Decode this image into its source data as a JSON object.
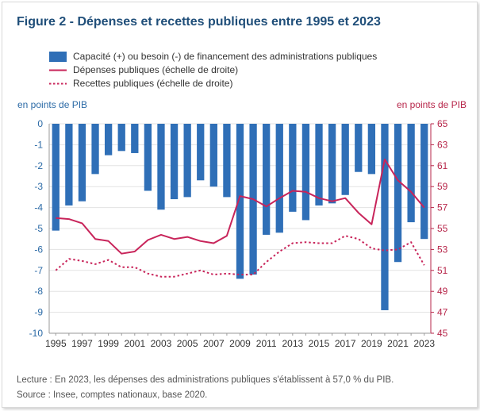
{
  "title": "Figure 2 - Dépenses et recettes publiques entre 1995 et 2023",
  "legend": {
    "bars": "Capacité (+) ou besoin (-) de financement des administrations publiques",
    "depenses": "Dépenses publiques (échelle de droite)",
    "recettes": "Recettes publiques (échelle de droite)"
  },
  "axis_left_title": "en points de PIB",
  "axis_right_title": "en points de PIB",
  "notes": {
    "lecture": "Lecture : En 2023, les dépenses des administrations publiques s'établissent à 57,0 % du PIB.",
    "source": "Source : Insee, comptes nationaux, base 2020."
  },
  "colors": {
    "bar": "#2f6fb7",
    "depenses": "#c8245a",
    "recettes": "#c8245a",
    "left_axis": "#2b6aa6",
    "right_axis": "#b7264a"
  },
  "chart_data": {
    "type": "bar",
    "years": [
      1995,
      1996,
      1997,
      1998,
      1999,
      2000,
      2001,
      2002,
      2003,
      2004,
      2005,
      2006,
      2007,
      2008,
      2009,
      2010,
      2011,
      2012,
      2013,
      2014,
      2015,
      2016,
      2017,
      2018,
      2019,
      2020,
      2021,
      2022,
      2023
    ],
    "x_tick_labels": [
      "1995",
      "1997",
      "1999",
      "2001",
      "2003",
      "2005",
      "2007",
      "2009",
      "2011",
      "2013",
      "2015",
      "2017",
      "2019",
      "2021",
      "2023"
    ],
    "y_left": {
      "range": [
        -10,
        0
      ],
      "ticks": [
        "0",
        "-1",
        "-2",
        "-3",
        "-4",
        "-5",
        "-6",
        "-7",
        "-8",
        "-9",
        "-10"
      ]
    },
    "y_right": {
      "range": [
        45,
        65
      ],
      "ticks": [
        "65",
        "63",
        "61",
        "59",
        "57",
        "55",
        "53",
        "51",
        "49",
        "47",
        "45"
      ]
    },
    "series": [
      {
        "name": "Capacité (+) ou besoin (-) de financement des administrations publiques",
        "axis": "left",
        "kind": "bar",
        "values": [
          -5.1,
          -3.9,
          -3.7,
          -2.4,
          -1.5,
          -1.3,
          -1.4,
          -3.2,
          -4.1,
          -3.6,
          -3.5,
          -2.7,
          -3.0,
          -3.5,
          -7.4,
          -7.2,
          -5.3,
          -5.2,
          -4.2,
          -4.6,
          -3.9,
          -3.8,
          -3.4,
          -2.3,
          -2.4,
          -8.9,
          -6.6,
          -4.7,
          -5.5
        ]
      },
      {
        "name": "Dépenses publiques (échelle de droite)",
        "axis": "right",
        "kind": "line",
        "values": [
          56.0,
          55.9,
          55.5,
          54.0,
          53.8,
          52.6,
          52.8,
          53.9,
          54.4,
          54.0,
          54.2,
          53.8,
          53.6,
          54.3,
          58.1,
          57.8,
          57.1,
          57.9,
          58.6,
          58.5,
          57.9,
          57.6,
          57.9,
          56.5,
          55.4,
          61.6,
          59.6,
          58.5,
          57.0
        ]
      },
      {
        "name": "Recettes publiques (échelle de droite)",
        "axis": "right",
        "kind": "line",
        "dashed": true,
        "values": [
          51.0,
          52.1,
          51.9,
          51.6,
          52.0,
          51.3,
          51.3,
          50.7,
          50.4,
          50.4,
          50.7,
          51.0,
          50.6,
          50.7,
          50.6,
          50.6,
          51.8,
          52.8,
          53.6,
          53.7,
          53.6,
          53.6,
          54.3,
          54.0,
          53.1,
          52.9,
          53.0,
          53.7,
          51.5
        ]
      }
    ]
  }
}
